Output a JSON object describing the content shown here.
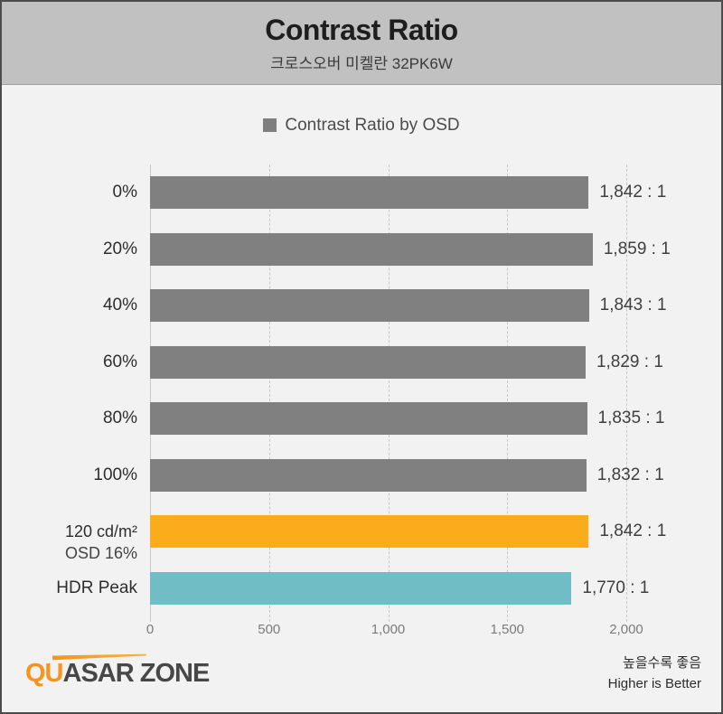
{
  "header": {
    "title": "Contrast Ratio",
    "subtitle": "크로스오버 미켈란 32PK6W"
  },
  "legend": {
    "label": "Contrast Ratio by OSD",
    "swatch_color": "#7f7f7f"
  },
  "chart_data": {
    "type": "bar",
    "orientation": "horizontal",
    "title": "Contrast Ratio",
    "subtitle": "크로스오버 미켈란 32PK6W",
    "legend_entries": [
      "Contrast Ratio by OSD"
    ],
    "xlim": [
      0,
      2000
    ],
    "x_ticks": [
      {
        "label": "0",
        "value": 0
      },
      {
        "label": "500",
        "value": 500
      },
      {
        "label": "1,000",
        "value": 1000
      },
      {
        "label": "1,500",
        "value": 1500
      },
      {
        "label": "2,000",
        "value": 2000
      }
    ],
    "grid": "vertical-dashed",
    "rows": [
      {
        "label": "0%",
        "label2": "",
        "value": 1842,
        "display": "1,842 : 1",
        "color": "#808080"
      },
      {
        "label": "20%",
        "label2": "",
        "value": 1859,
        "display": "1,859 : 1",
        "color": "#808080"
      },
      {
        "label": "40%",
        "label2": "",
        "value": 1843,
        "display": "1,843 : 1",
        "color": "#808080"
      },
      {
        "label": "60%",
        "label2": "",
        "value": 1829,
        "display": "1,829 : 1",
        "color": "#808080"
      },
      {
        "label": "80%",
        "label2": "",
        "value": 1835,
        "display": "1,835 : 1",
        "color": "#808080"
      },
      {
        "label": "100%",
        "label2": "",
        "value": 1832,
        "display": "1,832 : 1",
        "color": "#808080"
      },
      {
        "label": "120 cd/m²",
        "label2": "OSD 16%",
        "value": 1842,
        "display": "1,842 : 1",
        "color": "#fbac1b"
      },
      {
        "label": "HDR Peak",
        "label2": "",
        "value": 1770,
        "display": "1,770 : 1",
        "color": "#71bdc5"
      }
    ]
  },
  "footer": {
    "logo_orange": "QU",
    "logo_dark": "ASAR ZONE",
    "note_ko": "높을수록 좋음",
    "note_en": "Higher is Better"
  },
  "colors": {
    "page_bg": "#f2f2f2",
    "header_bg": "#c1c1c1",
    "border": "#4c4c4c",
    "bar_default": "#808080",
    "bar_orange": "#fbac1b",
    "bar_teal": "#71bdc5",
    "logo_orange": "#f7941e",
    "gridline": "#c7c7c7"
  }
}
